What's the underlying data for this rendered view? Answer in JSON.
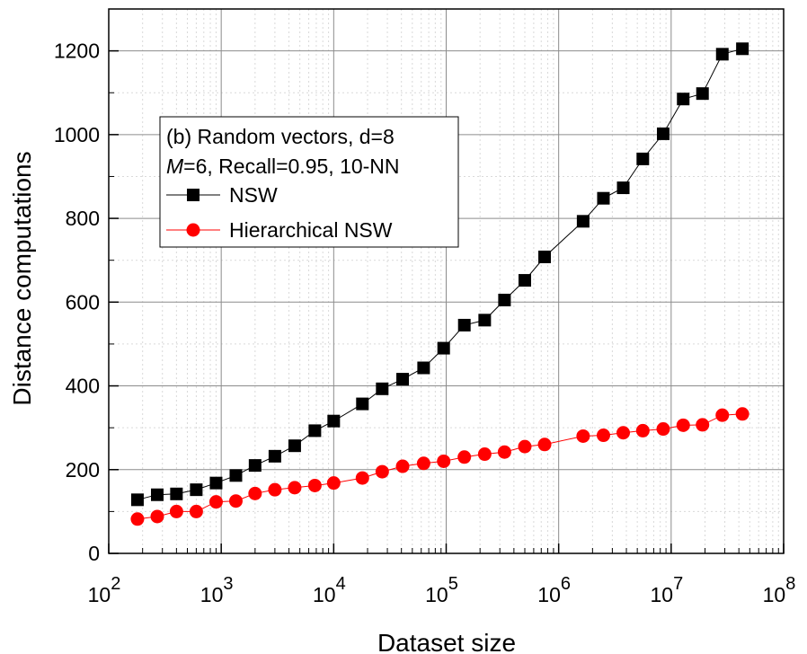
{
  "chart_data": {
    "type": "line",
    "xlabel": "Dataset size",
    "ylabel": "Distance computations",
    "xscale": "log",
    "xlim": [
      100,
      100000000
    ],
    "ylim": [
      0,
      1300
    ],
    "x_ticks": [
      100,
      1000,
      10000,
      100000,
      1000000,
      10000000,
      100000000
    ],
    "x_tick_base": "10",
    "x_tick_exponents": [
      "2",
      "3",
      "4",
      "5",
      "6",
      "7",
      "8"
    ],
    "y_ticks": [
      "0",
      "200",
      "400",
      "600",
      "800",
      "1000",
      "1200"
    ],
    "grid": true,
    "legend_position": "top-left",
    "legend_title_line1": "(b) Random vectors, d=8",
    "legend_title_line2_italic": "M",
    "legend_title_line2_rest": "=6, Recall=0.95, 10-NN",
    "series": [
      {
        "name": "NSW",
        "color": "#000000",
        "marker": "square",
        "x": [
          180,
          270,
          400,
          600,
          900,
          1350,
          2000,
          3000,
          4500,
          6800,
          10000,
          18000,
          27000,
          41000,
          63000,
          95000,
          145000,
          220000,
          330000,
          500000,
          750000,
          1650000,
          2500000,
          3750000,
          5600000,
          8500000,
          12800000,
          19000000,
          28500000,
          43000000
        ],
        "y": [
          128,
          140,
          142,
          152,
          168,
          186,
          210,
          232,
          257,
          293,
          316,
          357,
          393,
          416,
          443,
          490,
          545,
          557,
          605,
          652,
          708,
          793,
          848,
          873,
          942,
          1002,
          1085,
          1098,
          1192,
          1205
        ]
      },
      {
        "name": "Hierarchical NSW",
        "color": "#ff0000",
        "marker": "circle",
        "x": [
          180,
          270,
          400,
          600,
          900,
          1350,
          2000,
          3000,
          4500,
          6800,
          10000,
          18000,
          27000,
          41000,
          63000,
          95000,
          145000,
          220000,
          330000,
          500000,
          750000,
          1650000,
          2500000,
          3750000,
          5600000,
          8500000,
          12800000,
          19000000,
          28500000,
          43000000
        ],
        "y": [
          82,
          88,
          100,
          100,
          123,
          125,
          143,
          152,
          157,
          162,
          168,
          180,
          195,
          208,
          215,
          220,
          230,
          237,
          242,
          255,
          260,
          280,
          282,
          288,
          293,
          297,
          306,
          307,
          330,
          333
        ]
      }
    ]
  }
}
